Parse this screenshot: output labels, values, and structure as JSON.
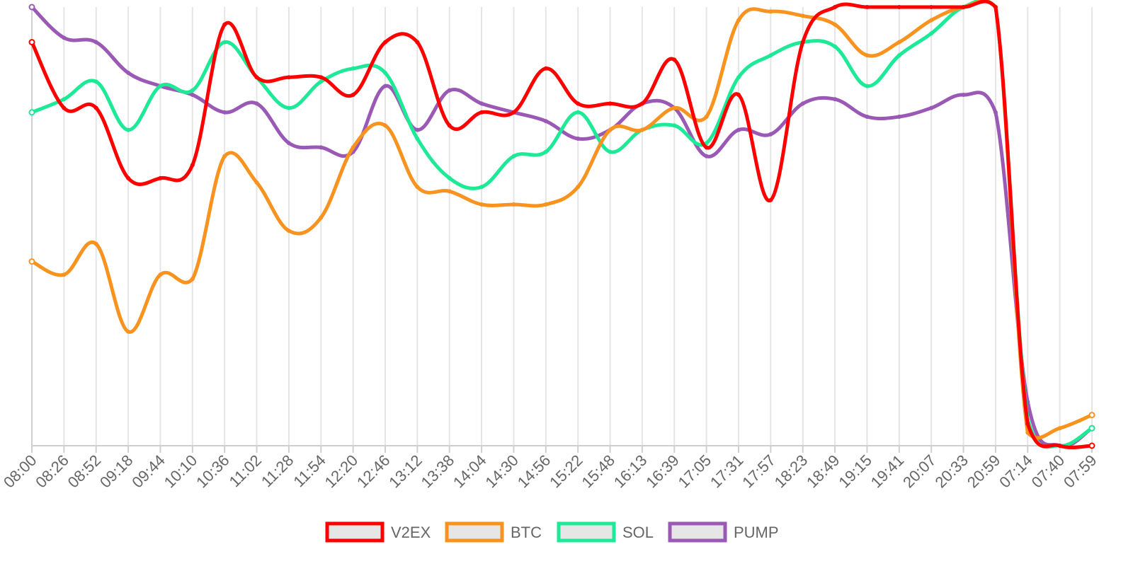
{
  "chart_data": {
    "type": "line",
    "title": "",
    "xlabel": "",
    "ylabel": "",
    "grid": "vertical",
    "legend_placement": "bottom",
    "x": [
      "08:00",
      "08:26",
      "08:52",
      "09:18",
      "09:44",
      "10:10",
      "10:36",
      "11:02",
      "11:28",
      "11:54",
      "12:20",
      "12:46",
      "13:12",
      "13:38",
      "14:04",
      "14:30",
      "14:56",
      "15:22",
      "15:48",
      "16:13",
      "16:39",
      "17:05",
      "17:31",
      "17:57",
      "18:23",
      "18:49",
      "19:15",
      "19:41",
      "20:07",
      "20:33",
      "20:59",
      "07:14",
      "07:40",
      "07:59"
    ],
    "ylim": [
      0,
      100
    ],
    "series": [
      {
        "name": "V2EX",
        "color": "#ff0000",
        "values": [
          92,
          77,
          77,
          61,
          61,
          64,
          96,
          84,
          84,
          84,
          80,
          92,
          92,
          73,
          76,
          76,
          86,
          78,
          78,
          78,
          88,
          68,
          80,
          56,
          92,
          100,
          100,
          100,
          100,
          100,
          100,
          5,
          0,
          0
        ]
      },
      {
        "name": "BTC",
        "color": "#f7931e",
        "values": [
          42,
          39,
          46,
          26,
          39,
          38,
          66,
          60,
          49,
          52,
          68,
          73,
          59,
          58,
          55,
          55,
          55,
          59,
          72,
          72,
          77,
          75,
          97,
          99,
          98,
          96,
          89,
          92,
          97,
          100,
          100,
          3,
          4,
          7
        ]
      },
      {
        "name": "SOL",
        "color": "#1de996",
        "values": [
          76,
          79,
          83,
          72,
          82,
          81,
          92,
          84,
          77,
          83,
          86,
          85,
          70,
          61,
          59,
          66,
          67,
          76,
          67,
          72,
          73,
          69,
          84,
          89,
          92,
          91,
          82,
          89,
          94,
          100,
          100,
          6,
          0,
          4
        ]
      },
      {
        "name": "PUMP",
        "color": "#9b59b6",
        "values": [
          100,
          93,
          92,
          85,
          82,
          80,
          76,
          78,
          69,
          68,
          67,
          82,
          72,
          81,
          78,
          76,
          74,
          70,
          72,
          78,
          77,
          66,
          72,
          71,
          78,
          79,
          75,
          75,
          77,
          80,
          76,
          10,
          0,
          4
        ]
      }
    ]
  }
}
